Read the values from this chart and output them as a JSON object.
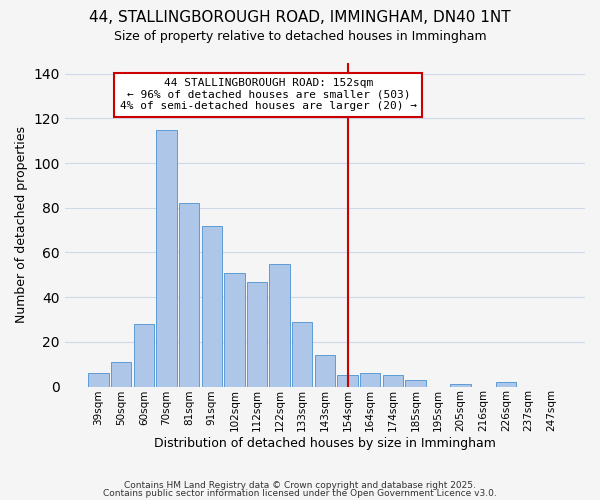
{
  "title": "44, STALLINGBOROUGH ROAD, IMMINGHAM, DN40 1NT",
  "subtitle": "Size of property relative to detached houses in Immingham",
  "xlabel": "Distribution of detached houses by size in Immingham",
  "ylabel": "Number of detached properties",
  "bar_labels": [
    "39sqm",
    "50sqm",
    "60sqm",
    "70sqm",
    "81sqm",
    "91sqm",
    "102sqm",
    "112sqm",
    "122sqm",
    "133sqm",
    "143sqm",
    "154sqm",
    "164sqm",
    "174sqm",
    "185sqm",
    "195sqm",
    "205sqm",
    "216sqm",
    "226sqm",
    "237sqm",
    "247sqm"
  ],
  "bar_heights": [
    6,
    11,
    28,
    115,
    82,
    72,
    51,
    47,
    55,
    29,
    14,
    5,
    6,
    5,
    3,
    0,
    1,
    0,
    2,
    0,
    0
  ],
  "bar_color": "#aec6e8",
  "bar_edge_color": "#5b9bd5",
  "vline_x_index": 11,
  "vline_color": "#cc0000",
  "annotation_text": "44 STALLINGBOROUGH ROAD: 152sqm\n← 96% of detached houses are smaller (503)\n4% of semi-detached houses are larger (20) →",
  "annotation_box_color": "#ffffff",
  "annotation_box_edge": "#cc0000",
  "ylim": [
    0,
    145
  ],
  "footer_lines": [
    "Contains HM Land Registry data © Crown copyright and database right 2025.",
    "Contains public sector information licensed under the Open Government Licence v3.0."
  ],
  "title_fontsize": 11,
  "subtitle_fontsize": 9,
  "axis_label_fontsize": 9,
  "tick_fontsize": 7.5,
  "annotation_fontsize": 8,
  "footer_fontsize": 6.5,
  "background_color": "#f5f5f5",
  "grid_color": "#d0d8e8"
}
